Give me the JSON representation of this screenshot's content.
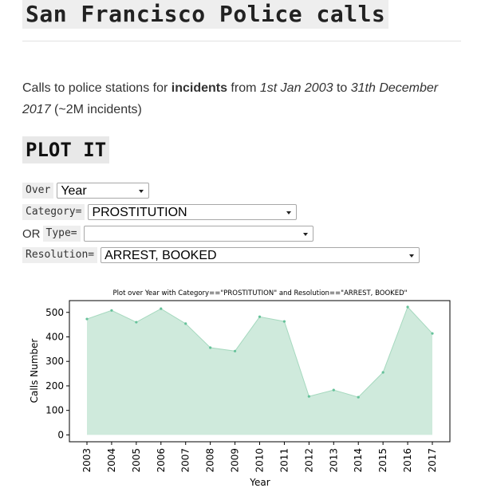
{
  "page": {
    "title": "San Francisco Police calls",
    "description": {
      "p1": "Calls to police stations for ",
      "b1": "incidents",
      "p2": " from ",
      "i1": "1st Jan 2003",
      "p3": " to ",
      "i2": "31th December 2017",
      "p4": " (~2M incidents)"
    },
    "section_heading": "PLOT IT"
  },
  "controls": {
    "over": {
      "label": "Over",
      "value": "Year"
    },
    "category": {
      "label": "Category=",
      "value": "PROSTITUTION"
    },
    "type": {
      "prefix": "OR",
      "label": "Type=",
      "value": ""
    },
    "resolution": {
      "label": "Resolution=",
      "value": "ARREST, BOOKED"
    }
  },
  "chart_data": {
    "type": "area",
    "title": "Plot over Year with Category==\"PROSTITUTION\" and Resolution==\"ARREST, BOOKED\"",
    "xlabel": "Year",
    "ylabel": "Calls Number",
    "categories": [
      "2003",
      "2004",
      "2005",
      "2006",
      "2007",
      "2008",
      "2009",
      "2010",
      "2011",
      "2012",
      "2013",
      "2014",
      "2015",
      "2016",
      "2017"
    ],
    "values": [
      473,
      508,
      460,
      515,
      454,
      356,
      342,
      482,
      463,
      157,
      183,
      154,
      255,
      522,
      414
    ],
    "ylim": [
      -28,
      548
    ],
    "yticks": [
      0,
      100,
      200,
      300,
      400,
      500
    ],
    "grid": false,
    "fill_color": "#cfeadc",
    "line_color": "#a6d9bf",
    "marker_color": "#66c29a"
  }
}
